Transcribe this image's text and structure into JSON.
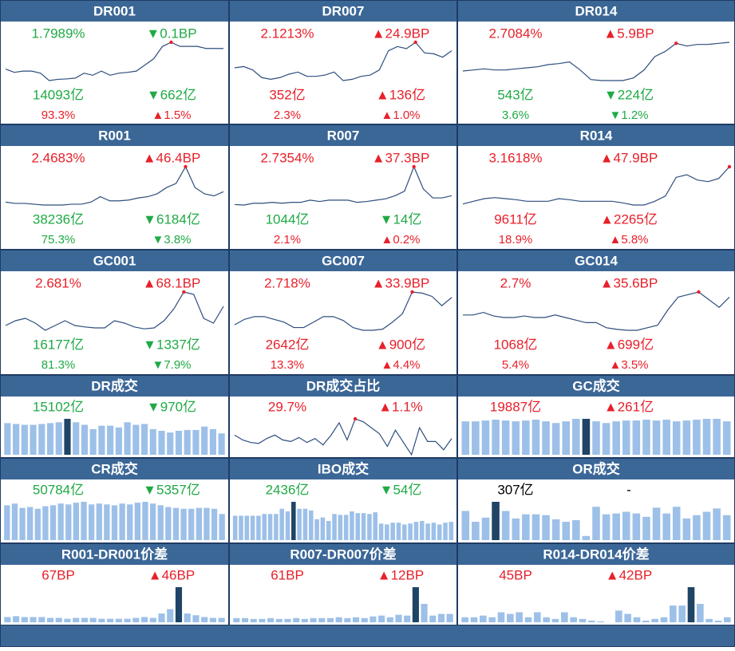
{
  "chart_data": [
    {
      "type": "line",
      "title": "DR001",
      "stats": [
        [
          {
            "text": "1.7989%",
            "color": "#1faa45"
          },
          {
            "text": "▼0.1BP",
            "color": "#1faa45"
          }
        ],
        [
          {
            "text": "14093亿",
            "color": "#1faa45"
          },
          {
            "text": "▼662亿",
            "color": "#1faa45"
          }
        ],
        [
          {
            "text": "93.3%",
            "color": "#e8202a"
          },
          {
            "text": "▲1.5%",
            "color": "#e8202a"
          }
        ]
      ],
      "values": [
        30,
        22,
        25,
        25,
        20,
        2,
        5,
        6,
        8,
        20,
        15,
        25,
        15,
        20,
        22,
        25,
        40,
        55,
        85,
        95,
        85,
        85,
        85,
        80,
        80,
        80
      ],
      "marker": 19
    },
    {
      "type": "line",
      "title": "DR007",
      "stats": [
        [
          {
            "text": "2.1213%",
            "color": "#e8202a"
          },
          {
            "text": "▲24.9BP",
            "color": "#e8202a"
          }
        ],
        [
          {
            "text": "352亿",
            "color": "#e8202a"
          },
          {
            "text": "▲136亿",
            "color": "#e8202a"
          }
        ],
        [
          {
            "text": "2.3%",
            "color": "#e8202a"
          },
          {
            "text": "▲1.0%",
            "color": "#e8202a"
          }
        ]
      ],
      "values": [
        35,
        38,
        30,
        12,
        8,
        12,
        20,
        25,
        15,
        15,
        18,
        25,
        5,
        8,
        15,
        18,
        30,
        75,
        85,
        80,
        95,
        70,
        68,
        60,
        75
      ],
      "marker": 20
    },
    {
      "type": "line",
      "title": "DR014",
      "stats": [
        [
          {
            "text": "2.7084%",
            "color": "#e8202a"
          },
          {
            "text": "▲5.9BP",
            "color": "#e8202a"
          }
        ],
        [
          {
            "text": "543亿",
            "color": "#1faa45"
          },
          {
            "text": "▼224亿",
            "color": "#1faa45"
          }
        ],
        [
          {
            "text": "3.6%",
            "color": "#1faa45"
          },
          {
            "text": "▼1.2%",
            "color": "#1faa45"
          }
        ]
      ],
      "values": [
        38,
        40,
        42,
        40,
        40,
        42,
        44,
        46,
        50,
        52,
        55,
        40,
        22,
        20,
        20,
        20,
        25,
        40,
        65,
        75,
        90,
        85,
        88,
        88,
        90,
        92
      ],
      "marker": 20
    },
    {
      "type": "line",
      "title": "R001",
      "stats": [
        [
          {
            "text": "2.4683%",
            "color": "#e8202a"
          },
          {
            "text": "▲46.4BP",
            "color": "#e8202a"
          }
        ],
        [
          {
            "text": "38236亿",
            "color": "#1faa45"
          },
          {
            "text": "▼6184亿",
            "color": "#1faa45"
          }
        ],
        [
          {
            "text": "75.3%",
            "color": "#1faa45"
          },
          {
            "text": "▼3.8%",
            "color": "#1faa45"
          }
        ]
      ],
      "values": [
        15,
        12,
        12,
        10,
        8,
        8,
        8,
        10,
        10,
        15,
        28,
        18,
        18,
        20,
        25,
        28,
        35,
        50,
        60,
        100,
        50,
        35,
        30,
        40
      ],
      "marker": 19
    },
    {
      "type": "line",
      "title": "R007",
      "stats": [
        [
          {
            "text": "2.7354%",
            "color": "#e8202a"
          },
          {
            "text": "▲37.3BP",
            "color": "#e8202a"
          }
        ],
        [
          {
            "text": "1044亿",
            "color": "#1faa45"
          },
          {
            "text": "▼14亿",
            "color": "#1faa45"
          }
        ],
        [
          {
            "text": "2.1%",
            "color": "#e8202a"
          },
          {
            "text": "▲0.2%",
            "color": "#e8202a"
          }
        ]
      ],
      "values": [
        15,
        14,
        18,
        18,
        20,
        18,
        20,
        20,
        25,
        22,
        25,
        25,
        25,
        20,
        22,
        25,
        28,
        35,
        45,
        100,
        50,
        30,
        30,
        35
      ],
      "marker": 19
    },
    {
      "type": "line",
      "title": "R014",
      "stats": [
        [
          {
            "text": "3.1618%",
            "color": "#e8202a"
          },
          {
            "text": "▲47.9BP",
            "color": "#e8202a"
          }
        ],
        [
          {
            "text": "9611亿",
            "color": "#e8202a"
          },
          {
            "text": "▲2265亿",
            "color": "#e8202a"
          }
        ],
        [
          {
            "text": "18.9%",
            "color": "#e8202a"
          },
          {
            "text": "▲5.8%",
            "color": "#e8202a"
          }
        ]
      ],
      "values": [
        30,
        35,
        40,
        42,
        40,
        38,
        35,
        35,
        35,
        40,
        38,
        35,
        35,
        35,
        35,
        32,
        28,
        28,
        35,
        45,
        80,
        85,
        75,
        72,
        78,
        100
      ],
      "marker": 25
    },
    {
      "type": "line",
      "title": "GC001",
      "stats": [
        [
          {
            "text": "2.681%",
            "color": "#e8202a"
          },
          {
            "text": "▲68.1BP",
            "color": "#e8202a"
          }
        ],
        [
          {
            "text": "16177亿",
            "color": "#1faa45"
          },
          {
            "text": "▼1337亿",
            "color": "#1faa45"
          }
        ],
        [
          {
            "text": "81.3%",
            "color": "#1faa45"
          },
          {
            "text": "▼7.9%",
            "color": "#1faa45"
          }
        ]
      ],
      "values": [
        15,
        25,
        30,
        20,
        5,
        15,
        25,
        15,
        12,
        10,
        10,
        25,
        20,
        12,
        8,
        10,
        25,
        50,
        85,
        80,
        30,
        20,
        55
      ],
      "marker": 18
    },
    {
      "type": "line",
      "title": "GC007",
      "stats": [
        [
          {
            "text": "2.718%",
            "color": "#e8202a"
          },
          {
            "text": "▲33.9BP",
            "color": "#e8202a"
          }
        ],
        [
          {
            "text": "2642亿",
            "color": "#e8202a"
          },
          {
            "text": "▲900亿",
            "color": "#e8202a"
          }
        ],
        [
          {
            "text": "13.3%",
            "color": "#e8202a"
          },
          {
            "text": "▲4.4%",
            "color": "#e8202a"
          }
        ]
      ],
      "values": [
        20,
        30,
        35,
        35,
        30,
        25,
        15,
        15,
        25,
        35,
        35,
        28,
        15,
        10,
        10,
        12,
        25,
        40,
        80,
        78,
        72,
        55,
        70
      ],
      "marker": 18
    },
    {
      "type": "line",
      "title": "GC014",
      "stats": [
        [
          {
            "text": "2.7%",
            "color": "#e8202a"
          },
          {
            "text": "▲35.6BP",
            "color": "#e8202a"
          }
        ],
        [
          {
            "text": "1068亿",
            "color": "#e8202a"
          },
          {
            "text": "▲699亿",
            "color": "#e8202a"
          }
        ],
        [
          {
            "text": "5.4%",
            "color": "#e8202a"
          },
          {
            "text": "▲3.5%",
            "color": "#e8202a"
          }
        ]
      ],
      "values": [
        40,
        40,
        45,
        38,
        35,
        35,
        38,
        35,
        35,
        40,
        35,
        30,
        25,
        25,
        15,
        12,
        10,
        10,
        15,
        20,
        50,
        75,
        80,
        85,
        70,
        55,
        75
      ],
      "marker": 23
    },
    {
      "type": "bar",
      "title": "DR成交",
      "stats": [
        [
          {
            "text": "15102亿",
            "color": "#1faa45"
          },
          {
            "text": "▼970亿",
            "color": "#1faa45"
          }
        ]
      ],
      "values": [
        37,
        36,
        35,
        35,
        36,
        37,
        38,
        42,
        38,
        35,
        30,
        34,
        34,
        32,
        38,
        35,
        36,
        30,
        28,
        26,
        28,
        29,
        29,
        33,
        30,
        25
      ],
      "marker": 7
    },
    {
      "type": "line",
      "title": "DR成交占比",
      "stats": [
        [
          {
            "text": "29.7%",
            "color": "#e8202a"
          },
          {
            "text": "▲1.1%",
            "color": "#e8202a"
          }
        ]
      ],
      "values": [
        45,
        35,
        30,
        28,
        38,
        45,
        35,
        32,
        40,
        30,
        38,
        25,
        45,
        70,
        35,
        78,
        72,
        60,
        48,
        22,
        55,
        30,
        5,
        60,
        32,
        32,
        15,
        38
      ],
      "marker": 15
    },
    {
      "type": "bar",
      "title": "GC成交",
      "stats": [
        [
          {
            "text": "19887亿",
            "color": "#e8202a"
          },
          {
            "text": "▲261亿",
            "color": "#e8202a"
          }
        ]
      ],
      "values": [
        40,
        40,
        41,
        42,
        41,
        40,
        41,
        42,
        40,
        38,
        40,
        43,
        43,
        40,
        38,
        40,
        41,
        41,
        42,
        41,
        42,
        40,
        41,
        42,
        43,
        43,
        40
      ],
      "marker": 12
    },
    {
      "type": "bar",
      "title": "CR成交",
      "stats": [
        [
          {
            "text": "50784亿",
            "color": "#1faa45"
          },
          {
            "text": "▼5357亿",
            "color": "#1faa45"
          }
        ]
      ],
      "values": [
        40,
        42,
        37,
        38,
        36,
        39,
        40,
        42,
        41,
        43,
        44,
        41,
        42,
        41,
        40,
        42,
        41,
        43,
        44,
        42,
        40,
        38,
        37,
        36,
        36,
        37,
        37,
        36,
        30
      ]
    },
    {
      "type": "bar",
      "title": "IBO成交",
      "stats": [
        [
          {
            "text": "2436亿",
            "color": "#1faa45"
          },
          {
            "text": "▼54亿",
            "color": "#1faa45"
          }
        ]
      ],
      "values": [
        28,
        28,
        28,
        28,
        28,
        30,
        30,
        30,
        36,
        33,
        44,
        36,
        36,
        34,
        24,
        26,
        22,
        30,
        29,
        29,
        33,
        31,
        31,
        30,
        32,
        19,
        18,
        20,
        20,
        18,
        19,
        21,
        22,
        19,
        20,
        18,
        20,
        21
      ],
      "marker": 10
    },
    {
      "type": "bar",
      "title": "OR成交",
      "stats": [
        [
          {
            "text": "307亿",
            "color": "#000000"
          },
          {
            "text": "-",
            "color": "#000000"
          }
        ]
      ],
      "values": [
        35,
        22,
        27,
        46,
        35,
        26,
        31,
        31,
        30,
        25,
        22,
        24,
        5,
        40,
        31,
        32,
        34,
        32,
        28,
        39,
        32,
        40,
        26,
        30,
        34,
        38,
        30
      ],
      "marker": 3
    },
    {
      "type": "bar",
      "title": "R001-DR001价差",
      "stats": [
        [
          {
            "text": "67BP",
            "color": "#e8202a"
          },
          {
            "text": "▲46BP",
            "color": "#e8202a"
          }
        ]
      ],
      "values": [
        6,
        7,
        6,
        6,
        6,
        5,
        5,
        4,
        5,
        5,
        5,
        4,
        4,
        4,
        4,
        5,
        6,
        5,
        10,
        15,
        40,
        10,
        8,
        6,
        5,
        5
      ],
      "marker": 20
    },
    {
      "type": "bar",
      "title": "R007-DR007价差",
      "stats": [
        [
          {
            "text": "61BP",
            "color": "#e8202a"
          },
          {
            "text": "▲12BP",
            "color": "#e8202a"
          }
        ]
      ],
      "values": [
        5,
        5,
        4,
        4,
        5,
        4,
        4,
        5,
        4,
        5,
        5,
        5,
        6,
        5,
        6,
        5,
        7,
        8,
        6,
        9,
        8,
        42,
        22,
        8,
        10,
        10
      ],
      "marker": 21
    },
    {
      "type": "bar",
      "title": "R014-DR014价差",
      "stats": [
        [
          {
            "text": "45BP",
            "color": "#e8202a"
          },
          {
            "text": "▲42BP",
            "color": "#e8202a"
          }
        ]
      ],
      "values": [
        6,
        6,
        8,
        6,
        12,
        10,
        12,
        6,
        12,
        6,
        4,
        12,
        6,
        4,
        2,
        1,
        0,
        14,
        10,
        6,
        2,
        4,
        6,
        20,
        20,
        42,
        22,
        4,
        2,
        6
      ],
      "marker": 25
    }
  ]
}
